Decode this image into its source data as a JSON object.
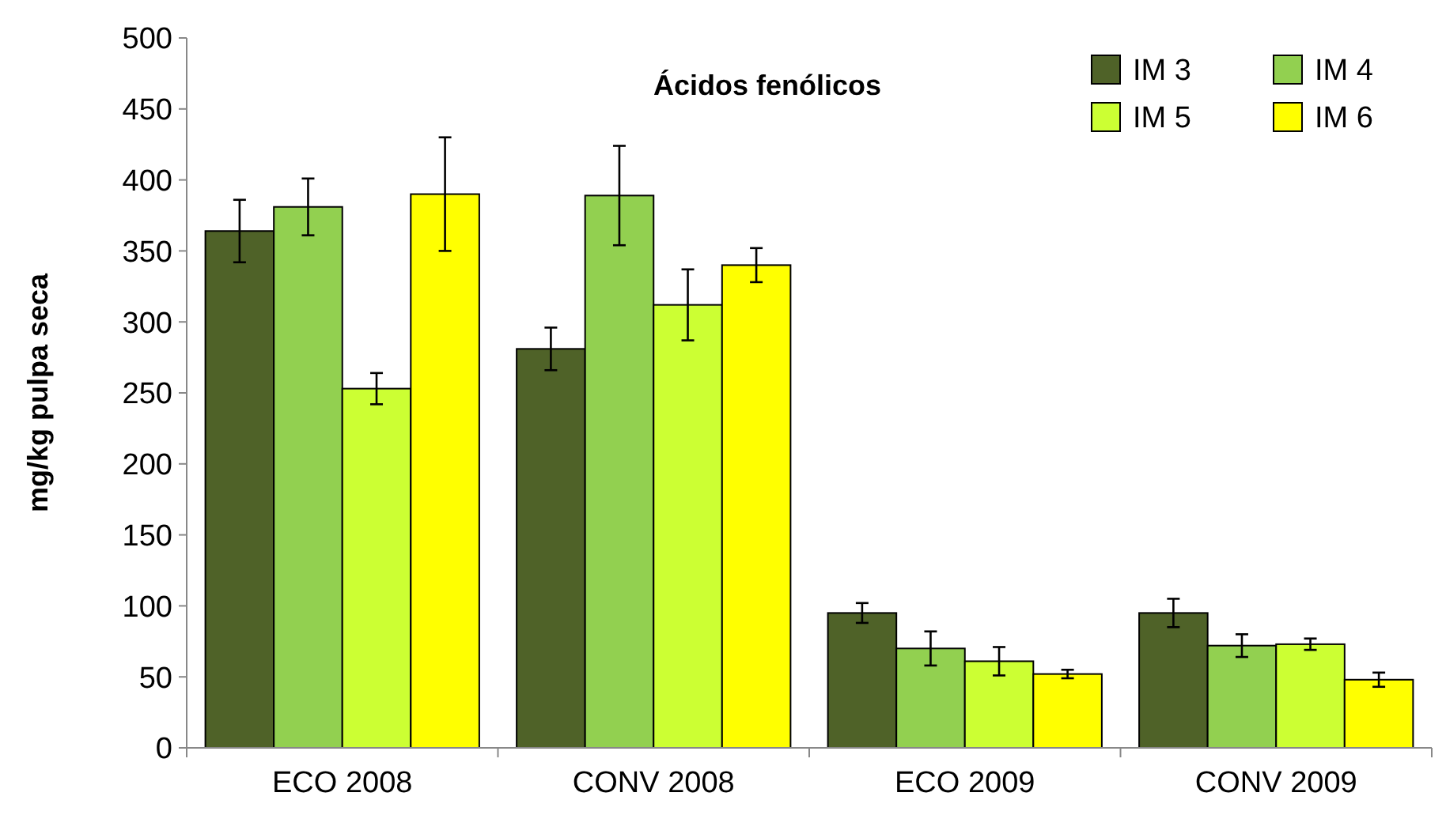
{
  "chart_data": {
    "type": "bar",
    "title": "Ácidos fenólicos",
    "ylabel": "mg/kg pulpa seca",
    "categories": [
      "ECO 2008",
      "CONV 2008",
      "ECO 2009",
      "CONV 2009"
    ],
    "series": [
      {
        "name": "IM 3",
        "color": "#4f6228",
        "values": [
          364,
          281,
          95,
          95
        ],
        "errors": [
          22,
          15,
          7,
          10
        ]
      },
      {
        "name": "IM 4",
        "color": "#92d050",
        "values": [
          381,
          389,
          70,
          72
        ],
        "errors": [
          20,
          35,
          12,
          8
        ]
      },
      {
        "name": "IM 5",
        "color": "#ccff33",
        "values": [
          253,
          312,
          61,
          73
        ],
        "errors": [
          11,
          25,
          10,
          4
        ]
      },
      {
        "name": "IM 6",
        "color": "#ffff00",
        "values": [
          390,
          340,
          52,
          48
        ],
        "errors": [
          40,
          12,
          3,
          5
        ]
      }
    ],
    "ylim": [
      0,
      500
    ],
    "yticks": [
      0,
      50,
      100,
      150,
      200,
      250,
      300,
      350,
      400,
      450,
      500
    ],
    "legend": "top right",
    "grid": false
  }
}
